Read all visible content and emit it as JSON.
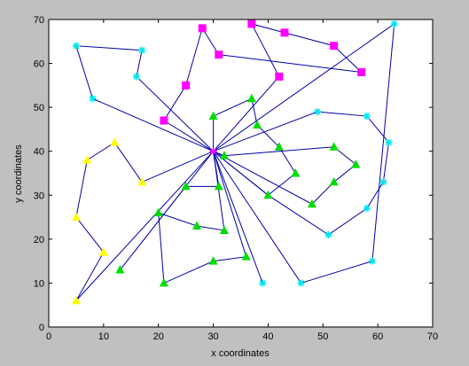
{
  "chart_data": {
    "type": "scatter",
    "xlabel": "x coordinates",
    "ylabel": "y coordinates",
    "xlim": [
      0,
      70
    ],
    "ylim": [
      0,
      70
    ],
    "xticks": [
      0,
      10,
      20,
      30,
      40,
      50,
      60,
      70
    ],
    "yticks": [
      0,
      10,
      20,
      30,
      40,
      50,
      60,
      70
    ],
    "grid": false,
    "line_color": "#0000aa",
    "center": {
      "x": 30,
      "y": 40,
      "marker": "star",
      "color": "#ff00ff"
    },
    "routes": [
      [
        [
          30,
          40
        ],
        [
          42,
          57
        ],
        [
          37,
          69
        ],
        [
          43,
          67
        ],
        [
          52,
          64
        ],
        [
          57,
          58
        ],
        [
          31,
          62
        ],
        [
          28,
          68
        ],
        [
          25,
          55
        ],
        [
          21,
          47
        ],
        [
          30,
          40
        ]
      ],
      [
        [
          30,
          40
        ],
        [
          17,
          33
        ],
        [
          12,
          42
        ],
        [
          7,
          38
        ],
        [
          5,
          25
        ],
        [
          10,
          17
        ],
        [
          5,
          6
        ],
        [
          30,
          40
        ]
      ],
      [
        [
          30,
          40
        ],
        [
          30,
          48
        ],
        [
          37,
          52
        ],
        [
          38,
          46
        ],
        [
          42,
          41
        ],
        [
          45,
          35
        ],
        [
          40,
          30
        ],
        [
          30,
          40
        ]
      ],
      [
        [
          30,
          40
        ],
        [
          31,
          32
        ],
        [
          25,
          32
        ],
        [
          13,
          13
        ],
        [
          30,
          40
        ]
      ],
      [
        [
          30,
          40
        ],
        [
          32,
          22
        ],
        [
          27,
          23
        ],
        [
          20,
          26
        ],
        [
          21,
          10
        ],
        [
          30,
          15
        ],
        [
          36,
          16
        ],
        [
          30,
          40
        ]
      ],
      [
        [
          30,
          40
        ],
        [
          32,
          39
        ],
        [
          52,
          41
        ],
        [
          56,
          37
        ],
        [
          52,
          33
        ],
        [
          48,
          28
        ],
        [
          30,
          40
        ]
      ],
      [
        [
          30,
          40
        ],
        [
          39,
          10
        ],
        [
          30,
          40
        ]
      ],
      [
        [
          30,
          40
        ],
        [
          46,
          10
        ],
        [
          59,
          15
        ],
        [
          63,
          69
        ],
        [
          30,
          40
        ]
      ],
      [
        [
          30,
          40
        ],
        [
          8,
          52
        ],
        [
          5,
          64
        ],
        [
          17,
          63
        ],
        [
          16,
          57
        ],
        [
          30,
          40
        ]
      ],
      [
        [
          30,
          40
        ],
        [
          49,
          49
        ],
        [
          58,
          48
        ],
        [
          62,
          42
        ],
        [
          61,
          33
        ],
        [
          58,
          27
        ],
        [
          51,
          21
        ],
        [
          40,
          30
        ],
        [
          30,
          40
        ]
      ]
    ],
    "series": [
      {
        "marker": "square",
        "color": "#ff00ff",
        "x": [
          21,
          25,
          28,
          31,
          37,
          43,
          52,
          57,
          42
        ],
        "y": [
          47,
          55,
          68,
          62,
          69,
          67,
          64,
          58,
          57
        ]
      },
      {
        "marker": "triangle",
        "color": "#ffff00",
        "x": [
          17,
          12,
          7,
          5,
          10,
          5
        ],
        "y": [
          33,
          42,
          38,
          25,
          17,
          6
        ]
      },
      {
        "marker": "triangle",
        "color": "#00dd00",
        "x": [
          30,
          37,
          38,
          42,
          45,
          40,
          31,
          25,
          13,
          32,
          27,
          20,
          21,
          30,
          36,
          32,
          52,
          56,
          52,
          48
        ],
        "y": [
          48,
          52,
          46,
          41,
          35,
          30,
          32,
          32,
          13,
          22,
          23,
          26,
          10,
          15,
          16,
          39,
          41,
          37,
          33,
          28
        ]
      },
      {
        "marker": "star",
        "color": "#00e5ee",
        "x": [
          39,
          46,
          59,
          63,
          8,
          5,
          17,
          16,
          49,
          58,
          62,
          61,
          58,
          51
        ],
        "y": [
          10,
          10,
          15,
          69,
          52,
          64,
          63,
          57,
          49,
          48,
          42,
          33,
          27,
          21
        ]
      }
    ]
  }
}
